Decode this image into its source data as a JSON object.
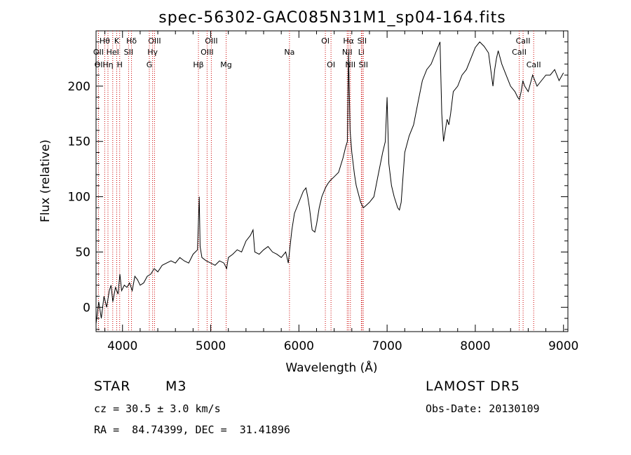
{
  "chart_data": {
    "type": "line",
    "title": "spec-56302-GAC085N31M1_sp04-164.fits",
    "xlabel": "Wavelength (Å)",
    "ylabel": "Flux (relative)",
    "xlim": [
      3700,
      9050
    ],
    "ylim": [
      -22,
      250
    ],
    "xticks": [
      4000,
      5000,
      6000,
      7000,
      8000,
      9000
    ],
    "xtick_labels": [
      "4000",
      "5000",
      "6000",
      "7000",
      "8000",
      "9000"
    ],
    "yticks": [
      0,
      50,
      100,
      150,
      200
    ],
    "ytick_labels": [
      "0",
      "50",
      "100",
      "150",
      "200"
    ],
    "grid": false,
    "line_color": "#000000",
    "marker_color": "#cc0000",
    "series": [
      {
        "x": [
          3700,
          3730,
          3760,
          3790,
          3820,
          3850,
          3870,
          3890,
          3920,
          3950,
          3970,
          3990,
          4020,
          4050,
          4080,
          4110,
          4140,
          4170,
          4200,
          4240,
          4280,
          4320,
          4360,
          4400,
          4450,
          4500,
          4550,
          4600,
          4650,
          4700,
          4750,
          4800,
          4850,
          4870,
          4880,
          4900,
          4950,
          5000,
          5050,
          5100,
          5150,
          5180,
          5200,
          5250,
          5300,
          5350,
          5400,
          5450,
          5480,
          5500,
          5550,
          5600,
          5650,
          5700,
          5750,
          5800,
          5850,
          5880,
          5900,
          5920,
          5950,
          6000,
          6050,
          6080,
          6100,
          6120,
          6150,
          6180,
          6200,
          6230,
          6260,
          6300,
          6330,
          6360,
          6400,
          6450,
          6500,
          6530,
          6550,
          6563,
          6580,
          6600,
          6630,
          6650,
          6700,
          6730,
          6760,
          6800,
          6850,
          6900,
          6950,
          6980,
          7000,
          7020,
          7050,
          7080,
          7100,
          7120,
          7140,
          7160,
          7200,
          7250,
          7300,
          7350,
          7400,
          7450,
          7500,
          7550,
          7600,
          7620,
          7640,
          7660,
          7680,
          7700,
          7720,
          7750,
          7800,
          7850,
          7900,
          7950,
          8000,
          8050,
          8100,
          8150,
          8200,
          8220,
          8240,
          8260,
          8300,
          8350,
          8400,
          8450,
          8480,
          8500,
          8520,
          8540,
          8560,
          8600,
          8650,
          8700,
          8750,
          8800,
          8850,
          8900,
          8950,
          9000
        ],
        "y": [
          -15,
          5,
          -10,
          10,
          0,
          15,
          20,
          5,
          18,
          12,
          30,
          15,
          20,
          18,
          22,
          15,
          28,
          25,
          20,
          22,
          28,
          30,
          35,
          32,
          38,
          40,
          42,
          40,
          45,
          42,
          40,
          48,
          52,
          100,
          55,
          45,
          42,
          40,
          38,
          42,
          40,
          35,
          45,
          48,
          52,
          50,
          60,
          65,
          70,
          50,
          48,
          52,
          55,
          50,
          48,
          45,
          50,
          40,
          55,
          70,
          85,
          95,
          105,
          108,
          100,
          90,
          70,
          68,
          75,
          90,
          100,
          108,
          112,
          115,
          118,
          122,
          135,
          145,
          150,
          230,
          160,
          140,
          120,
          110,
          95,
          90,
          92,
          95,
          100,
          120,
          140,
          150,
          190,
          130,
          110,
          100,
          95,
          90,
          88,
          95,
          140,
          155,
          165,
          185,
          205,
          215,
          220,
          230,
          240,
          175,
          150,
          160,
          170,
          165,
          175,
          195,
          200,
          210,
          215,
          225,
          235,
          240,
          236,
          230,
          200,
          215,
          225,
          232,
          220,
          210,
          200,
          195,
          190,
          188,
          195,
          205,
          200,
          195,
          210,
          200,
          205,
          210,
          210,
          215,
          205,
          212
        ]
      }
    ],
    "line_markers": [
      {
        "label": "Hθ",
        "x": 3798,
        "row": 1
      },
      {
        "label": "K",
        "x": 3934,
        "row": 1
      },
      {
        "label": "Hδ",
        "x": 4102,
        "row": 1
      },
      {
        "label": "OIII",
        "x": 4363,
        "row": 1
      },
      {
        "label": "OIII",
        "x": 5007,
        "row": 1
      },
      {
        "label": "OI",
        "x": 6300,
        "row": 1
      },
      {
        "label": "Hα",
        "x": 6563,
        "row": 1
      },
      {
        "label": "SII",
        "x": 6716,
        "row": 1
      },
      {
        "label": "CaII",
        "x": 8542,
        "row": 1
      },
      {
        "label": "OII",
        "x": 3727,
        "row": 2
      },
      {
        "label": "HeI",
        "x": 3889,
        "row": 2
      },
      {
        "label": "SII",
        "x": 4069,
        "row": 2
      },
      {
        "label": "Hγ",
        "x": 4341,
        "row": 2
      },
      {
        "label": "OIII",
        "x": 4959,
        "row": 2
      },
      {
        "label": "Na",
        "x": 5893,
        "row": 2
      },
      {
        "label": "NII",
        "x": 6548,
        "row": 2
      },
      {
        "label": "Li",
        "x": 6708,
        "row": 2
      },
      {
        "label": "CaII",
        "x": 8498,
        "row": 2
      },
      {
        "label": "OI",
        "x": 3728,
        "row": 3
      },
      {
        "label": "Hη",
        "x": 3835,
        "row": 3
      },
      {
        "label": "H",
        "x": 3968,
        "row": 3
      },
      {
        "label": "G",
        "x": 4304,
        "row": 3
      },
      {
        "label": "Hβ",
        "x": 4861,
        "row": 3
      },
      {
        "label": "Mg",
        "x": 5175,
        "row": 3
      },
      {
        "label": "OI",
        "x": 6364,
        "row": 3
      },
      {
        "label": "NII",
        "x": 6584,
        "row": 3
      },
      {
        "label": "SII",
        "x": 6731,
        "row": 3
      },
      {
        "label": "CaII",
        "x": 8662,
        "row": 3
      }
    ]
  },
  "info": {
    "object_class": "STAR",
    "subclass": "M3",
    "survey": "LAMOST DR5",
    "redshift": "cz = 30.5 ± 3.0 km/s",
    "obs_date": "Obs-Date: 20130109",
    "coords": "RA =  84.74399, DEC =  31.41896"
  }
}
